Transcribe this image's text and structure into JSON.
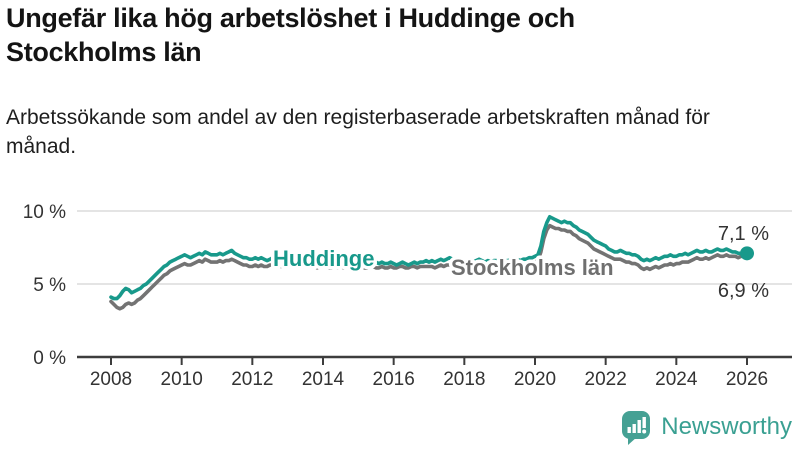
{
  "header": {
    "title": "Ungefär lika hög arbetslöshet i Huddinge och Stockholms län",
    "subtitle": "Arbetssökande som andel av den registerbaserade arbetskraften månad för månad."
  },
  "footer": {
    "brand": "Newsworthy",
    "icon": "newsworthy-speech-bubble-bar-chart-icon"
  },
  "colors": {
    "huddinge": "#18998b",
    "stockholm": "#737373",
    "grid": "#dcdcdc",
    "axis": "#3d3d3d",
    "tick_text": "#333333",
    "logo": "#45a194"
  },
  "chart_data": {
    "type": "line",
    "title": "Ungefär lika hög arbetslöshet i Huddinge och Stockholms län",
    "subtitle": "Arbetssökande som andel av den registerbaserade arbetskraften månad för månad.",
    "unit": "%",
    "x_start": "2008-01",
    "x_end": "2026-01",
    "frequency": "monthly",
    "x_ticks": [
      2008,
      2010,
      2012,
      2014,
      2016,
      2018,
      2020,
      2022,
      2024,
      2026
    ],
    "y_ticks": [
      0,
      5,
      10
    ],
    "y_tick_labels": [
      "0 %",
      "5 %",
      "10 %"
    ],
    "ylim": [
      0,
      10.8
    ],
    "grid": "horizontal-only",
    "legend": "inline-labels-on-lines",
    "series": [
      {
        "name": "Huddinge",
        "color": "#18998b",
        "end_label": "7,1 %",
        "end_value": 7.1,
        "values": [
          4.1,
          4.0,
          4.0,
          4.2,
          4.5,
          4.7,
          4.6,
          4.4,
          4.5,
          4.6,
          4.7,
          4.9,
          5.0,
          5.2,
          5.4,
          5.6,
          5.8,
          6.0,
          6.2,
          6.3,
          6.5,
          6.6,
          6.7,
          6.8,
          6.9,
          7.0,
          6.9,
          6.8,
          6.9,
          7.0,
          7.1,
          7.0,
          7.2,
          7.1,
          7.0,
          7.0,
          7.0,
          7.1,
          7.0,
          7.1,
          7.2,
          7.3,
          7.1,
          7.0,
          6.9,
          6.8,
          6.8,
          6.7,
          6.7,
          6.8,
          6.7,
          6.8,
          6.7,
          6.6,
          6.7,
          6.8,
          6.7,
          6.7,
          6.6,
          6.7,
          6.7,
          6.8,
          6.7,
          6.6,
          6.7,
          6.6,
          6.7,
          6.6,
          6.7,
          6.6,
          6.6,
          6.7,
          6.6,
          6.7,
          6.6,
          6.5,
          6.6,
          6.5,
          6.6,
          6.5,
          6.6,
          6.5,
          6.5,
          6.6,
          6.5,
          6.6,
          6.5,
          6.4,
          6.5,
          6.6,
          6.5,
          6.4,
          6.5,
          6.4,
          6.4,
          6.5,
          6.4,
          6.3,
          6.4,
          6.5,
          6.4,
          6.3,
          6.4,
          6.5,
          6.4,
          6.5,
          6.5,
          6.6,
          6.5,
          6.6,
          6.5,
          6.6,
          6.7,
          6.6,
          6.7,
          6.8,
          6.7,
          6.6,
          6.7,
          6.6,
          6.6,
          6.5,
          6.6,
          6.5,
          6.6,
          6.7,
          6.6,
          6.5,
          6.6,
          6.5,
          6.6,
          6.6,
          6.6,
          6.7,
          6.6,
          6.6,
          6.7,
          6.6,
          6.7,
          6.6,
          6.7,
          6.7,
          6.8,
          6.8,
          6.9,
          7.0,
          7.6,
          8.6,
          9.2,
          9.6,
          9.5,
          9.4,
          9.3,
          9.2,
          9.3,
          9.2,
          9.2,
          9.0,
          8.9,
          8.7,
          8.6,
          8.5,
          8.4,
          8.2,
          8.0,
          7.9,
          7.8,
          7.7,
          7.6,
          7.4,
          7.3,
          7.2,
          7.2,
          7.3,
          7.2,
          7.1,
          7.1,
          7.0,
          7.0,
          6.9,
          6.7,
          6.6,
          6.7,
          6.6,
          6.7,
          6.8,
          6.7,
          6.8,
          6.9,
          6.9,
          7.0,
          6.9,
          6.9,
          7.0,
          7.0,
          7.1,
          7.0,
          7.1,
          7.2,
          7.3,
          7.2,
          7.2,
          7.3,
          7.2,
          7.2,
          7.3,
          7.4,
          7.3,
          7.3,
          7.4,
          7.3,
          7.2,
          7.2,
          7.1,
          7.1,
          7.1,
          7.1
        ]
      },
      {
        "name": "Stockholms län",
        "color": "#737373",
        "end_label": "6,9 %",
        "end_value": 6.9,
        "values": [
          3.8,
          3.6,
          3.4,
          3.3,
          3.4,
          3.6,
          3.7,
          3.6,
          3.7,
          3.9,
          4.0,
          4.2,
          4.4,
          4.6,
          4.8,
          5.0,
          5.2,
          5.4,
          5.6,
          5.7,
          5.9,
          6.0,
          6.1,
          6.2,
          6.3,
          6.4,
          6.3,
          6.3,
          6.4,
          6.5,
          6.6,
          6.5,
          6.7,
          6.6,
          6.5,
          6.5,
          6.5,
          6.6,
          6.5,
          6.6,
          6.6,
          6.7,
          6.6,
          6.5,
          6.4,
          6.3,
          6.3,
          6.2,
          6.2,
          6.3,
          6.2,
          6.3,
          6.2,
          6.2,
          6.3,
          6.3,
          6.2,
          6.2,
          6.2,
          6.3,
          6.3,
          6.3,
          6.2,
          6.2,
          6.3,
          6.2,
          6.3,
          6.2,
          6.2,
          6.2,
          6.1,
          6.2,
          6.2,
          6.2,
          6.1,
          6.1,
          6.2,
          6.1,
          6.2,
          6.1,
          6.2,
          6.1,
          6.1,
          6.2,
          6.1,
          6.2,
          6.1,
          6.1,
          6.2,
          6.2,
          6.1,
          6.1,
          6.2,
          6.1,
          6.1,
          6.2,
          6.1,
          6.1,
          6.2,
          6.2,
          6.1,
          6.1,
          6.2,
          6.2,
          6.1,
          6.2,
          6.2,
          6.2,
          6.2,
          6.2,
          6.1,
          6.2,
          6.3,
          6.2,
          6.3,
          6.3,
          6.2,
          6.2,
          6.3,
          6.2,
          6.2,
          6.2,
          6.3,
          6.2,
          6.3,
          6.3,
          6.3,
          6.2,
          6.3,
          6.2,
          6.3,
          6.3,
          6.3,
          6.3,
          6.3,
          6.3,
          6.4,
          6.3,
          6.4,
          6.3,
          6.4,
          6.4,
          6.4,
          6.5,
          6.5,
          6.6,
          7.2,
          8.1,
          8.7,
          9.0,
          8.9,
          8.8,
          8.8,
          8.7,
          8.7,
          8.6,
          8.6,
          8.4,
          8.3,
          8.1,
          8.0,
          7.9,
          7.8,
          7.6,
          7.4,
          7.3,
          7.2,
          7.1,
          7.0,
          6.9,
          6.8,
          6.7,
          6.7,
          6.7,
          6.6,
          6.5,
          6.5,
          6.4,
          6.4,
          6.3,
          6.1,
          6.0,
          6.1,
          6.0,
          6.1,
          6.2,
          6.1,
          6.2,
          6.3,
          6.3,
          6.4,
          6.3,
          6.4,
          6.4,
          6.5,
          6.5,
          6.5,
          6.6,
          6.7,
          6.8,
          6.7,
          6.7,
          6.8,
          6.7,
          6.8,
          6.9,
          7.0,
          6.9,
          6.9,
          7.0,
          6.9,
          6.9,
          6.9,
          6.8,
          6.9,
          6.9,
          6.9
        ]
      }
    ]
  }
}
